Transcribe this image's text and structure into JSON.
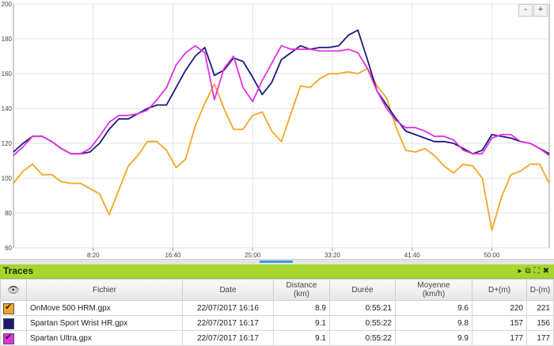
{
  "chart_data": {
    "type": "line",
    "x_ticks": [
      "8:20",
      "16:40",
      "25:00",
      "33:20",
      "41:40",
      "50:00"
    ],
    "y_ticks": [
      "60",
      "80",
      "100",
      "120",
      "140",
      "160",
      "180",
      "200"
    ],
    "ylim": [
      60,
      200
    ],
    "x_unit": "minutes",
    "xlim": [
      0,
      56
    ],
    "grid": true,
    "series": [
      {
        "name": "OnMove 500 HRM.gpx",
        "color": "#f5a623",
        "x": [
          0,
          1,
          2,
          3,
          4,
          5,
          6,
          7,
          8,
          9,
          10,
          11,
          12,
          13,
          14,
          15,
          16,
          17,
          18,
          19,
          20,
          21,
          22,
          23,
          24,
          25,
          26,
          27,
          28,
          29,
          30,
          31,
          32,
          33,
          34,
          35,
          36,
          37,
          38,
          39,
          40,
          41,
          42,
          43,
          44,
          45,
          46,
          47,
          48,
          49,
          50,
          51,
          52,
          53,
          54,
          55,
          56
        ],
        "values": [
          97,
          104,
          108,
          102,
          102,
          98,
          97,
          97,
          94,
          91,
          79,
          93,
          107,
          113,
          121,
          121,
          116,
          106,
          111,
          130,
          143,
          154,
          140,
          128,
          128,
          136,
          138,
          127,
          121,
          137,
          153,
          152,
          157,
          160,
          160,
          161,
          160,
          163,
          153,
          146,
          129,
          116,
          115,
          117,
          113,
          107,
          103,
          108,
          107,
          100,
          70,
          89,
          102,
          104,
          108,
          108,
          97
        ]
      },
      {
        "name": "Spartan Sport Wrist HR.gpx",
        "color": "#1a1a7a",
        "x": [
          0,
          1,
          2,
          3,
          4,
          5,
          6,
          7,
          8,
          9,
          10,
          11,
          12,
          13,
          14,
          15,
          16,
          17,
          18,
          19,
          20,
          21,
          22,
          23,
          24,
          25,
          26,
          27,
          28,
          29,
          30,
          31,
          32,
          33,
          34,
          35,
          36,
          37,
          38,
          39,
          40,
          41,
          42,
          43,
          44,
          45,
          46,
          47,
          48,
          49,
          50,
          51,
          52,
          53,
          54,
          55,
          56
        ],
        "values": [
          115,
          120,
          124,
          124,
          121,
          117,
          114,
          114,
          115,
          120,
          128,
          134,
          134,
          137,
          140,
          142,
          142,
          152,
          162,
          170,
          175,
          159,
          162,
          169,
          167,
          158,
          148,
          155,
          168,
          172,
          176,
          174,
          175,
          175,
          176,
          182,
          185,
          168,
          150,
          142,
          134,
          127,
          125,
          123,
          121,
          121,
          120,
          117,
          114,
          116,
          125,
          124,
          123,
          121,
          120,
          117,
          114
        ]
      },
      {
        "name": "Spartan Ultra.gpx",
        "color": "#e331e3",
        "x": [
          0,
          1,
          2,
          3,
          4,
          5,
          6,
          7,
          8,
          9,
          10,
          11,
          12,
          13,
          14,
          15,
          16,
          17,
          18,
          19,
          20,
          21,
          22,
          23,
          24,
          25,
          26,
          27,
          28,
          29,
          30,
          31,
          32,
          33,
          34,
          35,
          36,
          37,
          38,
          39,
          40,
          41,
          42,
          43,
          44,
          45,
          46,
          47,
          48,
          49,
          50,
          51,
          52,
          53,
          54,
          55,
          56
        ],
        "values": [
          113,
          118,
          124,
          124,
          121,
          117,
          114,
          114,
          117,
          124,
          132,
          136,
          136,
          137,
          139,
          145,
          152,
          165,
          172,
          176,
          172,
          145,
          163,
          170,
          152,
          144,
          156,
          166,
          176,
          174,
          174,
          174,
          173,
          173,
          173,
          174,
          172,
          163,
          150,
          140,
          133,
          129,
          129,
          127,
          124,
          124,
          122,
          116,
          114,
          114,
          123,
          125,
          125,
          121,
          120,
          117,
          113
        ]
      }
    ]
  },
  "zoom": {
    "minus": "-",
    "plus": "+"
  },
  "panel": {
    "title": "Traces",
    "columns": {
      "fichier": "Fichier",
      "date": "Date",
      "distance": "Distance",
      "distance_unit": "(km)",
      "duree": "Durée",
      "moyenne": "Moyenne",
      "moyenne_unit": "(km/h)",
      "dplus": "D+(m)",
      "dminus": "D-(m)"
    },
    "rows": [
      {
        "swatch": "#f5a623",
        "file": "OnMove 500 HRM.gpx",
        "date": "22/07/2017 16:16",
        "distance": "8.9",
        "duree": "0:55:21",
        "moyenne": "9.6",
        "dplus": "220",
        "dminus": "221"
      },
      {
        "swatch": "#1a1a7a",
        "file": "Spartan Sport Wrist HR.gpx",
        "date": "22/07/2017 16:17",
        "distance": "9.1",
        "duree": "0:55:22",
        "moyenne": "9.8",
        "dplus": "157",
        "dminus": "156"
      },
      {
        "swatch": "#e331e3",
        "file": "Spartan Ultra.gpx",
        "date": "22/07/2017 16:17",
        "distance": "9.1",
        "duree": "0:55:22",
        "moyenne": "9.9",
        "dplus": "177",
        "dminus": "177"
      }
    ]
  }
}
